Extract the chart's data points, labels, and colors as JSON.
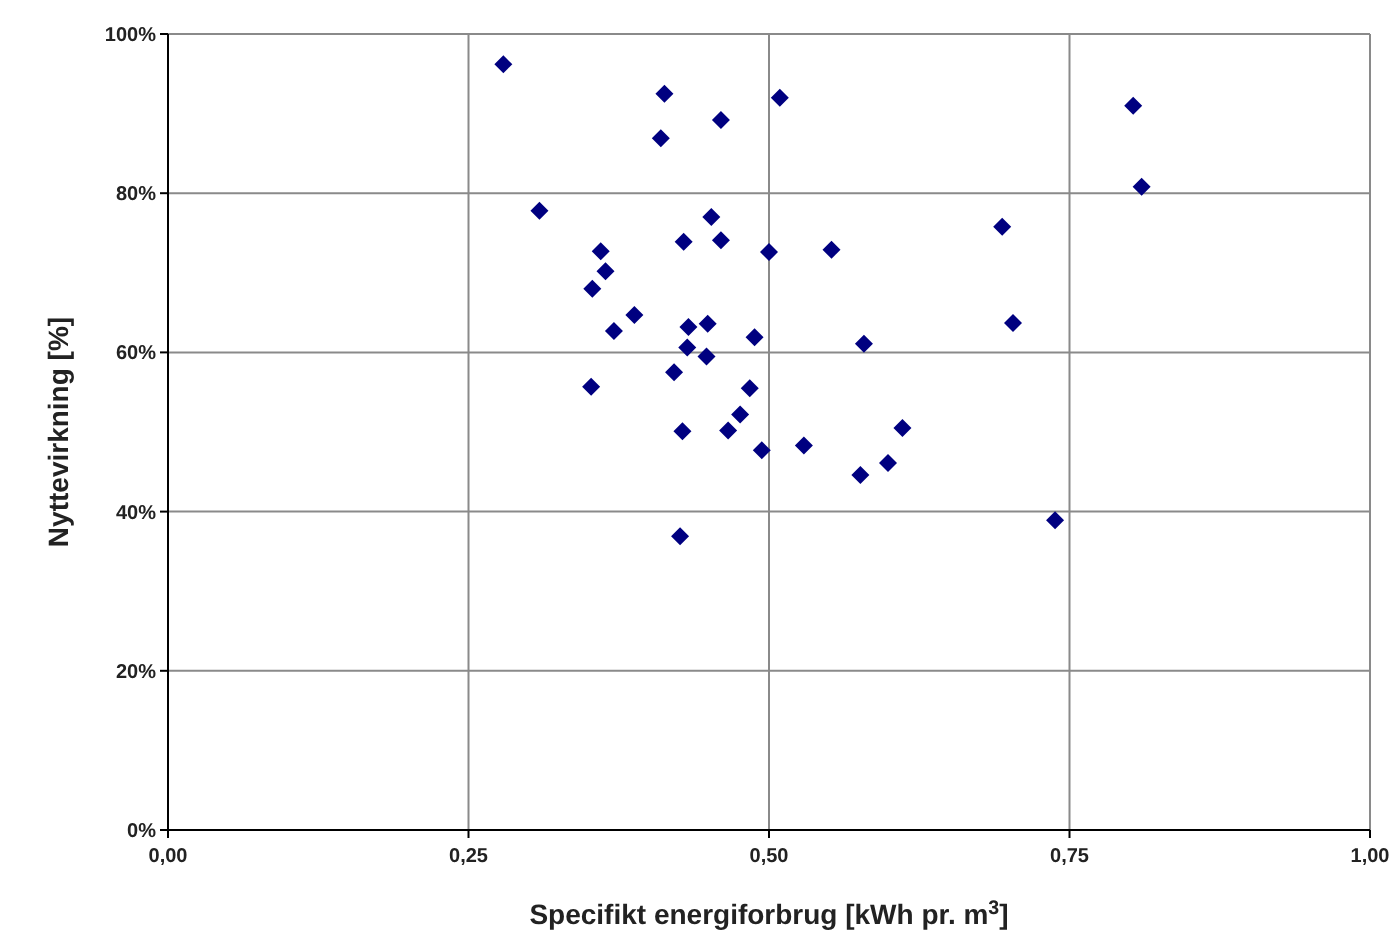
{
  "chart_data": {
    "type": "scatter",
    "xlabel": "Specifikt energiforbrug [kWh pr. m$^{3}$]",
    "ylabel": "Nyttevirkning [%]",
    "marker": "diamond",
    "grid": true,
    "xlim": [
      0,
      1
    ],
    "ylim": [
      0,
      100
    ],
    "xticks": [
      {
        "value": 0,
        "label": "0,00"
      },
      {
        "value": 0.25,
        "label": "0,25"
      },
      {
        "value": 0.5,
        "label": "0,50"
      },
      {
        "value": 0.75,
        "label": "0,75"
      },
      {
        "value": 1,
        "label": "1,00"
      }
    ],
    "yticks": [
      {
        "value": 0,
        "label": "0%"
      },
      {
        "value": 20,
        "label": "20%"
      },
      {
        "value": 40,
        "label": "40%"
      },
      {
        "value": 60,
        "label": "60%"
      },
      {
        "value": 80,
        "label": "80%"
      },
      {
        "value": 100,
        "label": "100%"
      }
    ],
    "series": [
      {
        "color": "#000080",
        "x": [
          0.279,
          0.413,
          0.509,
          0.46,
          0.41,
          0.309,
          0.452,
          0.46,
          0.429,
          0.36,
          0.5,
          0.552,
          0.364,
          0.353,
          0.388,
          0.371,
          0.433,
          0.449,
          0.488,
          0.579,
          0.432,
          0.448,
          0.421,
          0.352,
          0.484,
          0.476,
          0.466,
          0.428,
          0.494,
          0.529,
          0.576,
          0.426,
          0.803,
          0.81,
          0.694,
          0.703,
          0.611,
          0.599,
          0.738
        ],
        "values": [
          96.2,
          92.5,
          92.0,
          89.2,
          86.9,
          77.8,
          77.0,
          74.1,
          73.9,
          72.7,
          72.6,
          72.9,
          70.2,
          68.0,
          64.7,
          62.7,
          63.2,
          63.6,
          61.9,
          61.1,
          60.6,
          59.5,
          57.5,
          55.7,
          55.5,
          52.2,
          50.2,
          50.1,
          47.7,
          48.3,
          44.6,
          36.9,
          91.0,
          80.8,
          75.8,
          63.7,
          50.5,
          46.1,
          38.9
        ]
      }
    ]
  }
}
